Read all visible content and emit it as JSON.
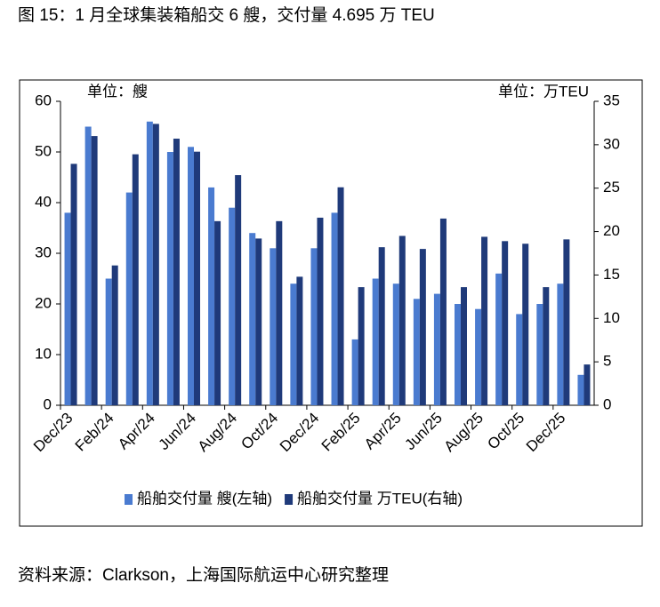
{
  "title": "图 15：1 月全球集装箱船交 6 艘，交付量 4.695 万 TEU",
  "source": "资料来源：Clarkson，上海国际航运中心研究整理",
  "chart_data": {
    "type": "bar",
    "left_unit": "单位：艘",
    "right_unit": "单位：万TEU",
    "categories": [
      "Dec/23",
      null,
      "Feb/24",
      null,
      "Apr/24",
      null,
      "Jun/24",
      null,
      "Aug/24",
      null,
      "Oct/24",
      null,
      "Dec/24",
      null,
      "Feb/25",
      null,
      "Apr/25",
      null,
      "Jun/25",
      null,
      "Aug/25",
      null,
      "Oct/25",
      null,
      "Dec/25",
      null
    ],
    "series": [
      {
        "name": "船舶交付量 艘(左轴)",
        "color": "#4a7bd0",
        "values": [
          38,
          55,
          25,
          42,
          56,
          50,
          51,
          43,
          39,
          34,
          31,
          24,
          31,
          38,
          13,
          25,
          24,
          21,
          22,
          20,
          19,
          26,
          18,
          20,
          24,
          6
        ]
      },
      {
        "name": "船舶交付量 万TEU(右轴)",
        "color": "#1f3a7a",
        "axis": "y2",
        "values": [
          27.8,
          31.0,
          16.1,
          28.9,
          32.4,
          30.7,
          29.2,
          21.2,
          26.5,
          19.2,
          21.2,
          14.8,
          21.6,
          25.1,
          13.6,
          18.2,
          19.5,
          18.0,
          21.5,
          13.6,
          19.4,
          18.9,
          18.6,
          13.6,
          19.1,
          4.695
        ]
      }
    ],
    "ylim": [
      0,
      60
    ],
    "yticks": [
      0,
      10,
      20,
      30,
      40,
      50,
      60
    ],
    "y2lim": [
      0,
      35
    ],
    "y2ticks": [
      0,
      5,
      10,
      15,
      20,
      25,
      30,
      35
    ],
    "legend": "bottom"
  }
}
